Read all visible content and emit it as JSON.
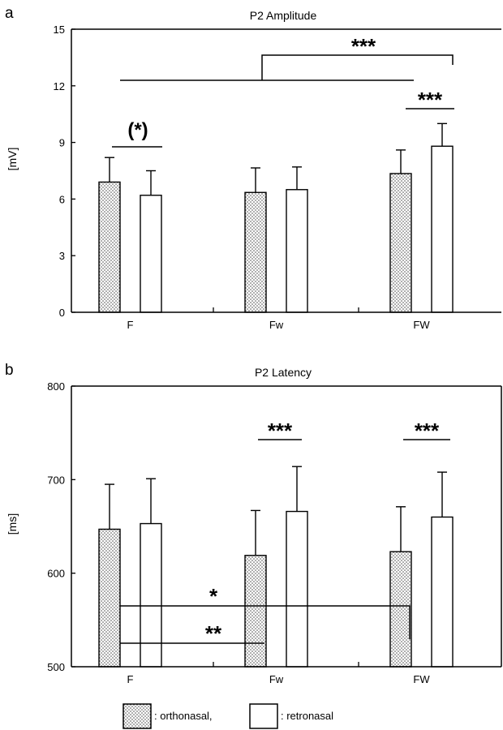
{
  "chart_data": [
    {
      "panel": "a",
      "type": "bar",
      "title": "P2 Amplitude",
      "ylabel": "[mV]",
      "ylim": [
        0,
        15
      ],
      "yticks": [
        0,
        3,
        6,
        9,
        12,
        15
      ],
      "categories": [
        "F",
        "Fw",
        "FW"
      ],
      "series": [
        {
          "name": "orthonasal",
          "values": [
            6.9,
            6.35,
            7.35
          ],
          "errors": [
            1.3,
            1.3,
            1.25
          ]
        },
        {
          "name": "retronasal",
          "values": [
            6.2,
            6.5,
            8.8
          ],
          "errors": [
            1.3,
            1.2,
            1.2
          ]
        }
      ],
      "annotations": [
        {
          "label": "(*)",
          "comparison": "F orthonasal vs F retronasal"
        },
        {
          "label": "***",
          "comparison": "FW orthonasal vs FW retronasal"
        },
        {
          "label": "***",
          "comparison": "FW retronasal vs other conditions"
        }
      ]
    },
    {
      "panel": "b",
      "type": "bar",
      "title": "P2 Latency",
      "ylabel": "[ms]",
      "ylim": [
        500,
        800
      ],
      "yticks": [
        500,
        600,
        700,
        800
      ],
      "categories": [
        "F",
        "Fw",
        "FW"
      ],
      "series": [
        {
          "name": "orthonasal",
          "values": [
            647,
            619,
            623
          ],
          "errors": [
            48,
            48,
            48
          ]
        },
        {
          "name": "retronasal",
          "values": [
            653,
            666,
            660
          ],
          "errors": [
            48,
            48,
            48
          ]
        }
      ],
      "annotations": [
        {
          "label": "***",
          "comparison": "Fw orthonasal vs Fw retronasal"
        },
        {
          "label": "***",
          "comparison": "FW orthonasal vs FW retronasal"
        },
        {
          "label": "*",
          "comparison": "F orthonasal vs FW orthonasal"
        },
        {
          "label": "**",
          "comparison": "F orthonasal vs Fw orthonasal"
        }
      ]
    }
  ],
  "legend": {
    "items": [
      {
        "label": ": orthonasal,",
        "pattern": "dotted"
      },
      {
        "label": ": retronasal",
        "pattern": "plain"
      }
    ]
  },
  "colors": {
    "ink": "#000000",
    "background": "#ffffff",
    "dot": "#444444"
  }
}
